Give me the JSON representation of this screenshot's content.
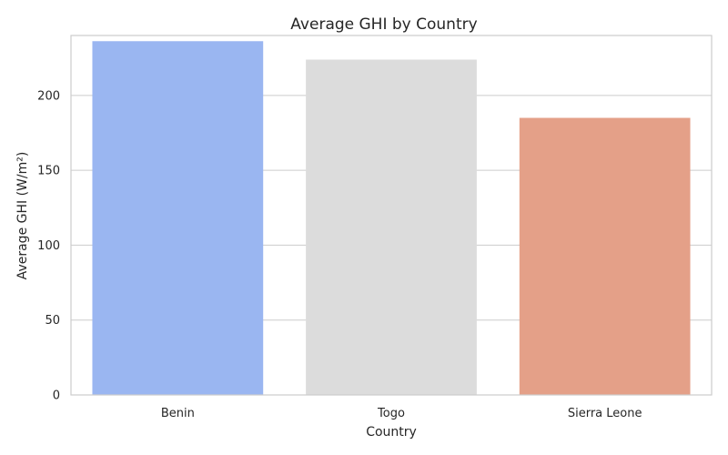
{
  "chart_data": {
    "type": "bar",
    "title": "Average GHI by Country",
    "xlabel": "Country",
    "ylabel": "Average GHI (W/m²)",
    "categories": [
      "Benin",
      "Togo",
      "Sierra Leone"
    ],
    "values": [
      236.2,
      223.9,
      185.0
    ],
    "colors": [
      "#9ab6f1",
      "#dcdcdc",
      "#e4a088"
    ],
    "ylim": [
      0,
      240
    ],
    "yticks": [
      0,
      50,
      100,
      150,
      200
    ],
    "grid": true,
    "legend": "none"
  }
}
